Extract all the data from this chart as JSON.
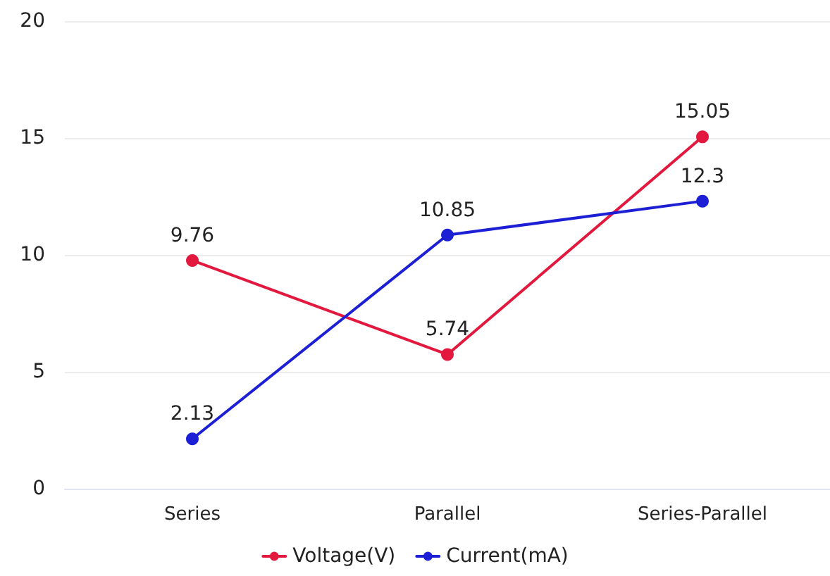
{
  "chart_data": {
    "type": "line",
    "categories": [
      "Series",
      "Parallel",
      "Series-Parallel"
    ],
    "series": [
      {
        "name": "Voltage(V)",
        "color": "#e2183e",
        "values": [
          9.76,
          5.74,
          15.05
        ]
      },
      {
        "name": "Current(mA)",
        "color": "#1c1fd4",
        "values": [
          2.13,
          10.85,
          12.3
        ]
      }
    ],
    "ylim": [
      0,
      20
    ],
    "yticks": [
      0,
      5,
      10,
      15,
      20
    ],
    "grid": "y",
    "legend": "bottom",
    "marker": "circle",
    "line_style": "solid",
    "data_labels": true
  }
}
